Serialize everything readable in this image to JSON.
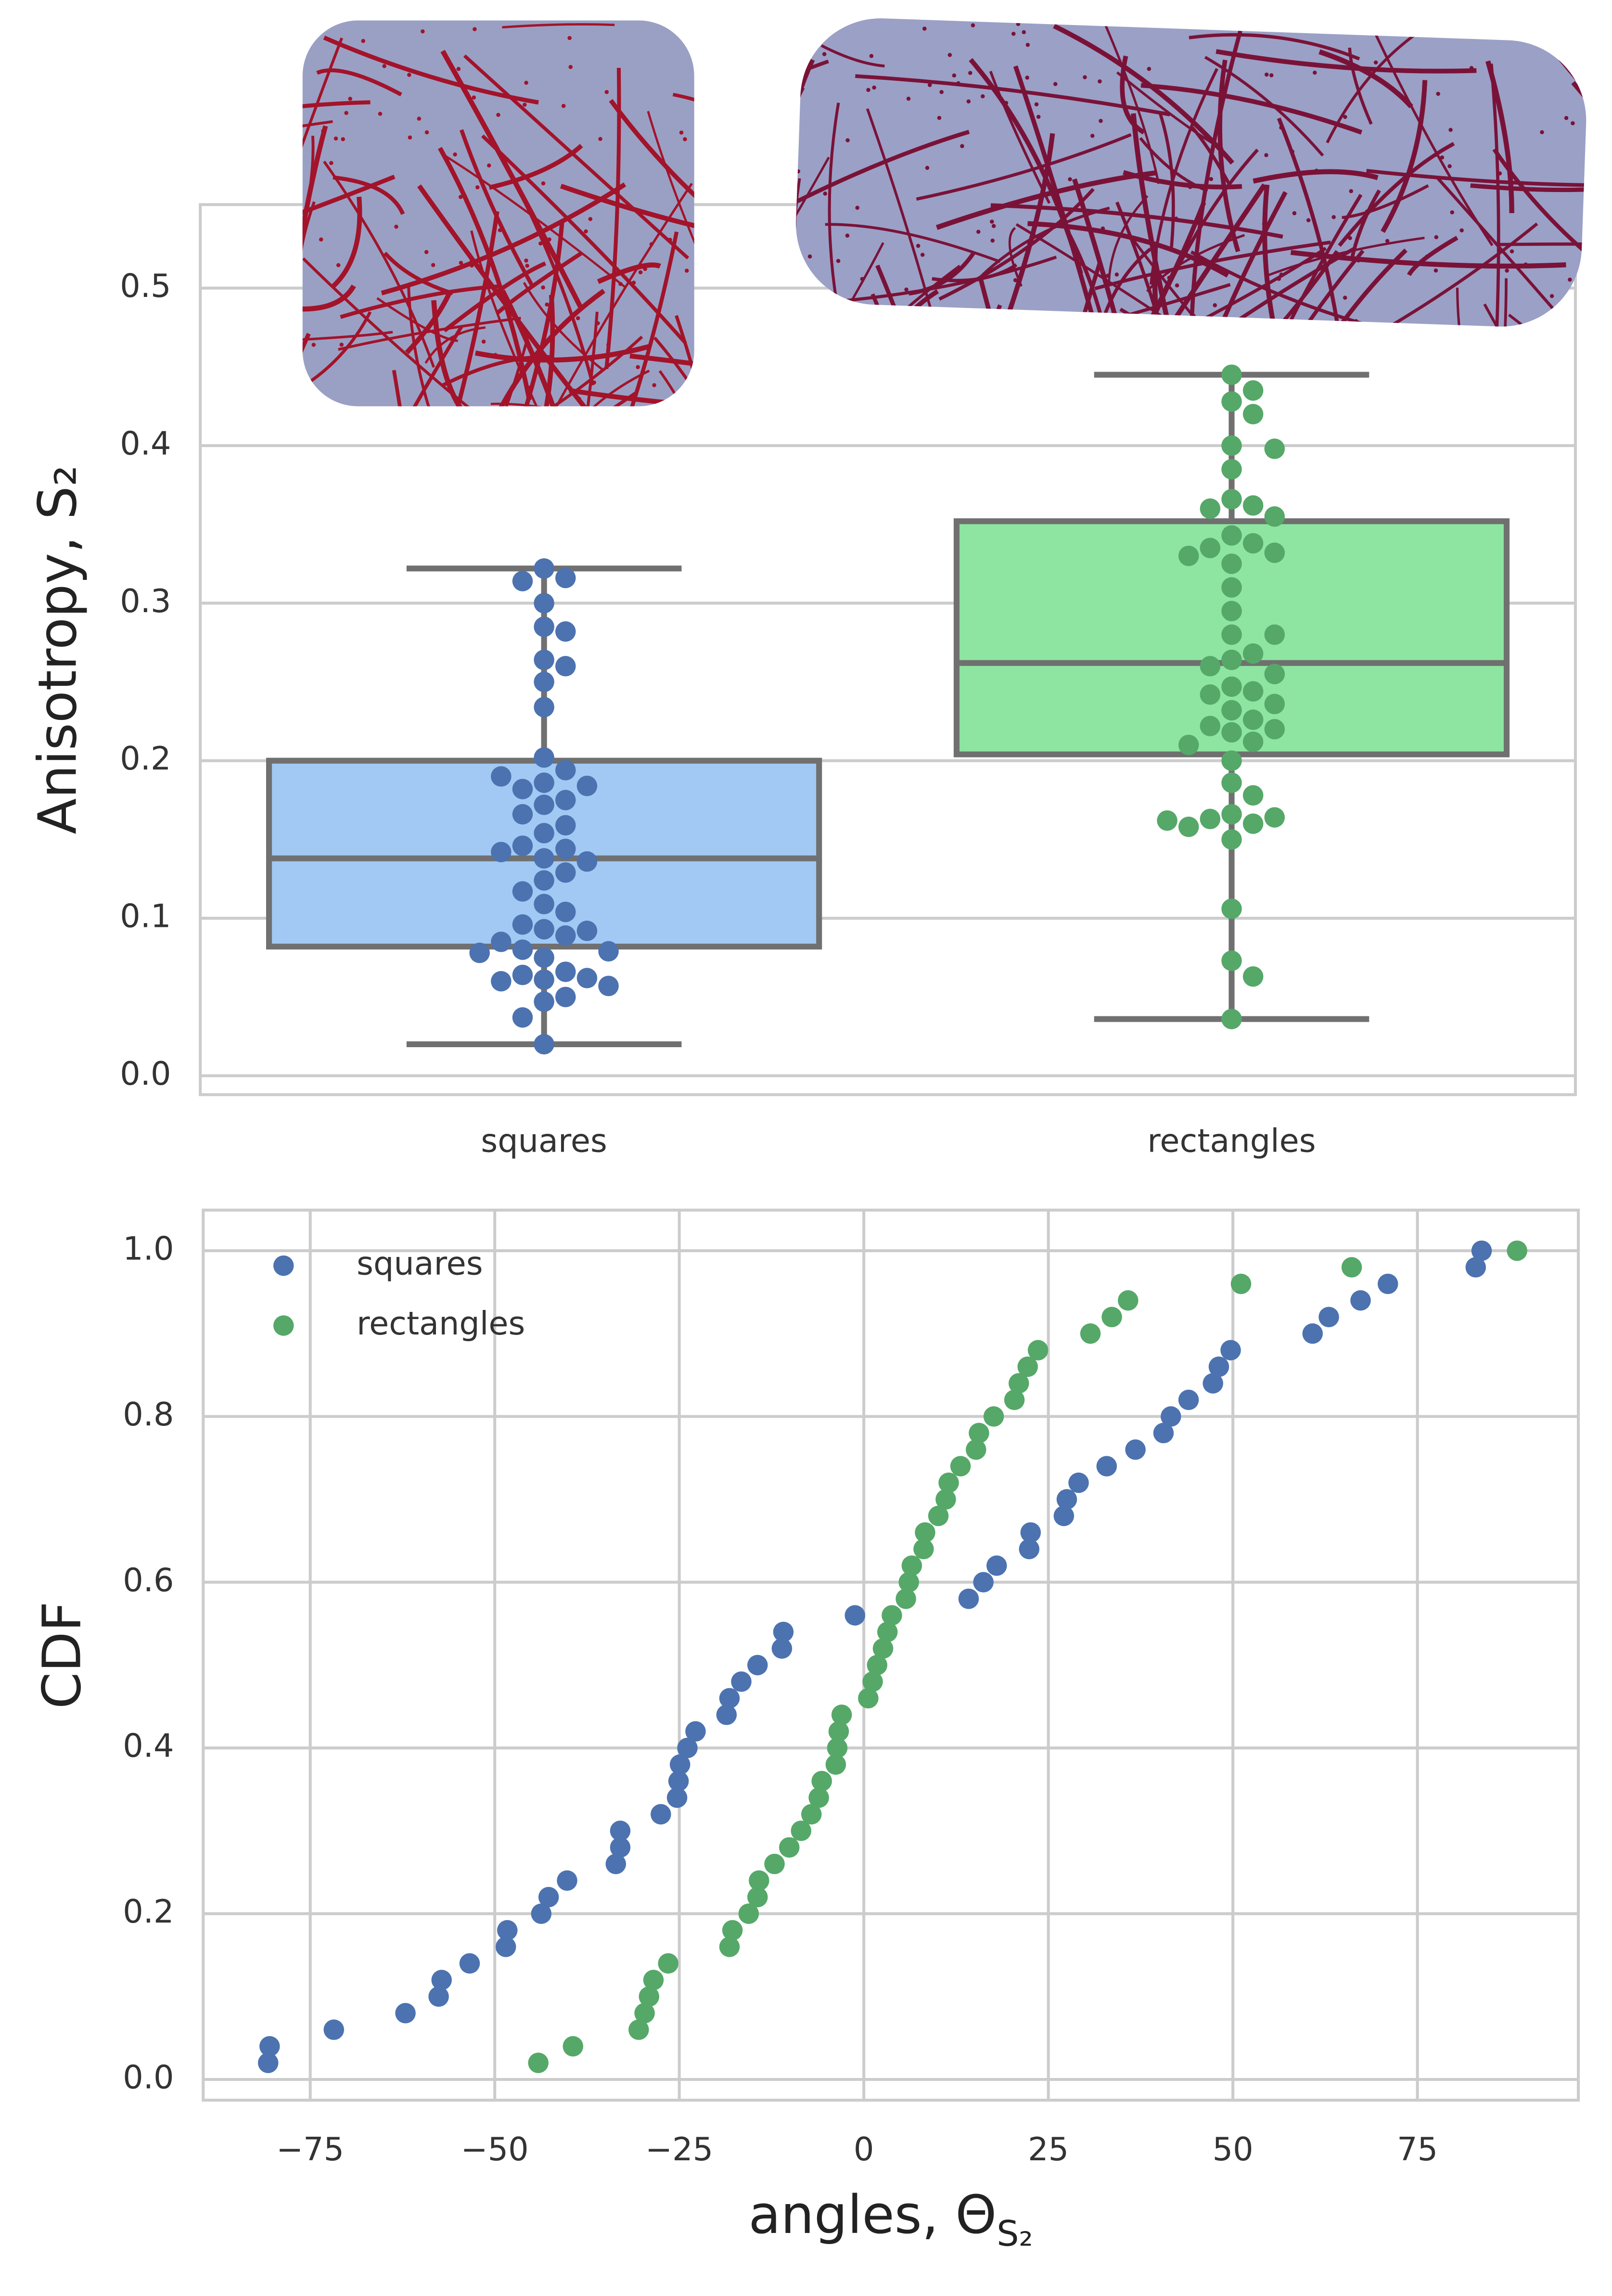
{
  "chart_data": [
    {
      "type": "box",
      "ylabel": "Anisotropy, S₂",
      "categories": [
        "squares",
        "rectangles"
      ],
      "colors": [
        "#a1c9f4",
        "#8de5a1"
      ],
      "point_colors": [
        "#4c72b0",
        "#55a868"
      ],
      "boxes": [
        {
          "whislo": 0.02,
          "q1": 0.082,
          "med": 0.138,
          "q3": 0.2,
          "whishi": 0.322
        },
        {
          "whislo": 0.036,
          "q1": 0.204,
          "med": 0.262,
          "q3": 0.352,
          "whishi": 0.445
        }
      ],
      "points": [
        [
          0.322,
          0.316,
          0.314,
          0.3,
          0.285,
          0.282,
          0.264,
          0.26,
          0.25,
          0.234,
          0.202,
          0.194,
          0.186,
          0.184,
          0.182,
          0.175,
          0.172,
          0.166,
          0.159,
          0.154,
          0.146,
          0.144,
          0.142,
          0.138,
          0.136,
          0.129,
          0.124,
          0.117,
          0.109,
          0.104,
          0.096,
          0.093,
          0.092,
          0.089,
          0.085,
          0.08,
          0.079,
          0.078,
          0.075,
          0.066,
          0.064,
          0.062,
          0.061,
          0.06,
          0.057,
          0.05,
          0.047,
          0.037,
          0.02,
          0.19
        ],
        [
          0.445,
          0.435,
          0.428,
          0.42,
          0.4,
          0.398,
          0.385,
          0.366,
          0.362,
          0.36,
          0.355,
          0.343,
          0.338,
          0.335,
          0.332,
          0.33,
          0.325,
          0.31,
          0.295,
          0.28,
          0.268,
          0.264,
          0.26,
          0.247,
          0.244,
          0.242,
          0.236,
          0.232,
          0.226,
          0.222,
          0.22,
          0.218,
          0.212,
          0.2,
          0.186,
          0.178,
          0.166,
          0.164,
          0.163,
          0.162,
          0.16,
          0.158,
          0.15,
          0.106,
          0.073,
          0.063,
          0.036,
          0.28,
          0.21,
          0.255
        ]
      ],
      "ylim": [
        -0.012,
        0.553
      ],
      "yticks": [
        {
          "value": 0,
          "label": "0.0"
        },
        0.1,
        0.2,
        0.3,
        0.4,
        0.5
      ],
      "grid": true
    },
    {
      "type": "scatter",
      "xlabel": "angles, Θ",
      "xlabel_sub": "S₂",
      "ylabel": "CDF",
      "xlim": [
        -89.5,
        96.8
      ],
      "ylim": [
        -0.025,
        1.049
      ],
      "xticks": [
        {
          "value": -75,
          "label": "−75"
        },
        {
          "value": -50,
          "label": "−50"
        },
        {
          "value": -25,
          "label": "−25"
        },
        0,
        25,
        50,
        75
      ],
      "yticks": [
        {
          "value": 0,
          "label": "0.0"
        },
        0.2,
        0.4,
        0.6,
        0.8,
        {
          "value": 1,
          "label": "1.0"
        }
      ],
      "grid": true,
      "legend": "upper left",
      "series": [
        {
          "name": "squares",
          "color": "#4c72b0",
          "x": [
            -80.7,
            -80.5,
            -71.8,
            -62.1,
            -57.6,
            -57.2,
            -53.4,
            -48.5,
            -48.3,
            -43.7,
            -42.7,
            -40.2,
            -33.6,
            -33.0,
            -33.0,
            -27.5,
            -25.3,
            -25.1,
            -24.9,
            -23.9,
            -22.8,
            -18.6,
            -18.2,
            -16.6,
            -14.4,
            -11.1,
            -10.9,
            -1.2,
            14.2,
            16.2,
            18.0,
            22.4,
            22.6,
            27.1,
            27.5,
            29.1,
            32.9,
            36.8,
            40.6,
            41.6,
            44.0,
            47.3,
            48.1,
            49.7,
            60.8,
            63.0,
            67.3,
            71.0,
            82.9,
            83.7
          ],
          "y": [
            0.02,
            0.04,
            0.06,
            0.08,
            0.1,
            0.12,
            0.14,
            0.16,
            0.18,
            0.2,
            0.22,
            0.24,
            0.26,
            0.28,
            0.3,
            0.32,
            0.34,
            0.36,
            0.38,
            0.4,
            0.42,
            0.44,
            0.46,
            0.48,
            0.5,
            0.52,
            0.54,
            0.56,
            0.58,
            0.6,
            0.62,
            0.64,
            0.66,
            0.68,
            0.7,
            0.72,
            0.74,
            0.76,
            0.78,
            0.8,
            0.82,
            0.84,
            0.86,
            0.88,
            0.9,
            0.92,
            0.94,
            0.96,
            0.98,
            1.0
          ]
        },
        {
          "name": "rectangles",
          "color": "#55a868",
          "x": [
            -44.1,
            -39.4,
            -30.5,
            -29.7,
            -29.1,
            -28.5,
            -26.5,
            -18.2,
            -17.8,
            -15.6,
            -14.4,
            -14.2,
            -12.1,
            -10.1,
            -8.5,
            -7.1,
            -6.1,
            -5.7,
            -3.8,
            -3.6,
            -3.4,
            -3.0,
            0.6,
            1.2,
            1.8,
            2.6,
            3.2,
            3.8,
            5.7,
            6.1,
            6.5,
            8.1,
            8.3,
            10.1,
            11.1,
            11.5,
            13.1,
            15.2,
            15.6,
            17.6,
            20.4,
            21.0,
            22.2,
            23.6,
            30.7,
            33.6,
            35.8,
            51.1,
            66.1,
            88.5
          ],
          "y": [
            0.02,
            0.04,
            0.06,
            0.08,
            0.1,
            0.12,
            0.14,
            0.16,
            0.18,
            0.2,
            0.22,
            0.24,
            0.26,
            0.28,
            0.3,
            0.32,
            0.34,
            0.36,
            0.38,
            0.4,
            0.42,
            0.44,
            0.46,
            0.48,
            0.5,
            0.52,
            0.54,
            0.56,
            0.58,
            0.6,
            0.62,
            0.64,
            0.66,
            0.68,
            0.7,
            0.72,
            0.74,
            0.76,
            0.78,
            0.8,
            0.82,
            0.84,
            0.86,
            0.88,
            0.9,
            0.92,
            0.94,
            0.96,
            0.98,
            1.0
          ]
        }
      ]
    }
  ]
}
